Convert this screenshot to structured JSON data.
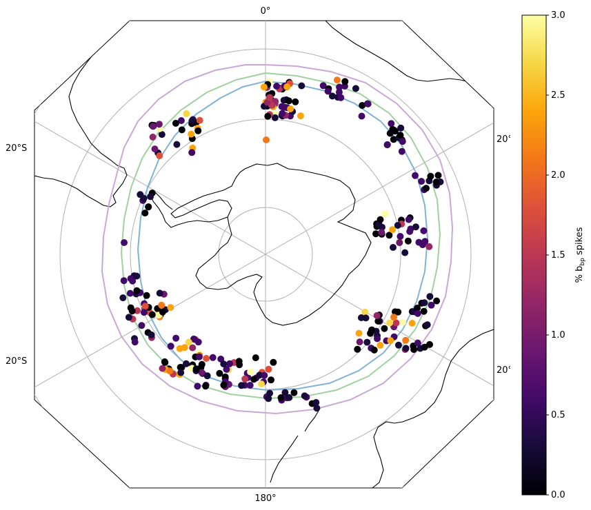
{
  "map": {
    "projection": "south polar stereographic",
    "gridline_labels": {
      "top": "0°",
      "bottom": "180°",
      "left_upper": "20°S",
      "left_lower": "20°S",
      "right_upper": "20°S",
      "right_lower": "20°S"
    },
    "colors": {
      "coastline": "#000000",
      "gridlines": "#b0b0b0",
      "front_outer": "#c9a8d8",
      "front_middle": "#9fd29f",
      "front_inner": "#7fb3d5"
    }
  },
  "colorbar": {
    "label_prefix": "% b",
    "label_sub": "bp",
    "label_suffix": " spikes",
    "ticks": [
      "0.0",
      "0.5",
      "1.0",
      "1.5",
      "2.0",
      "2.5",
      "3.0"
    ],
    "vmin": 0,
    "vmax": 3,
    "colormap": "inferno"
  },
  "chart_data": {
    "type": "scatter",
    "series_note": "",
    "colorscale": "inferno",
    "cmin": 0,
    "cmax": 3
  }
}
